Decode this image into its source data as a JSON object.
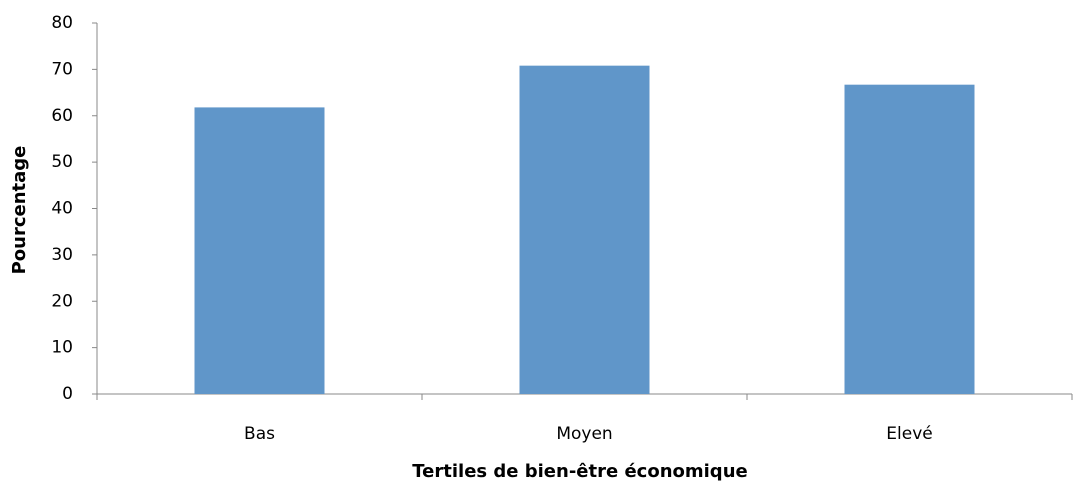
{
  "chart_data": {
    "type": "bar",
    "categories": [
      "Bas",
      "Moyen",
      "Elevé"
    ],
    "values": [
      61.8,
      70.8,
      66.7
    ],
    "color": "#6096c9",
    "xlabel": "Tertiles de bien-être économique",
    "ylabel": "Pourcentage",
    "ylim": [
      0,
      80
    ],
    "yticks": [
      0,
      10,
      20,
      30,
      40,
      50,
      60,
      70,
      80
    ],
    "grid": false
  }
}
